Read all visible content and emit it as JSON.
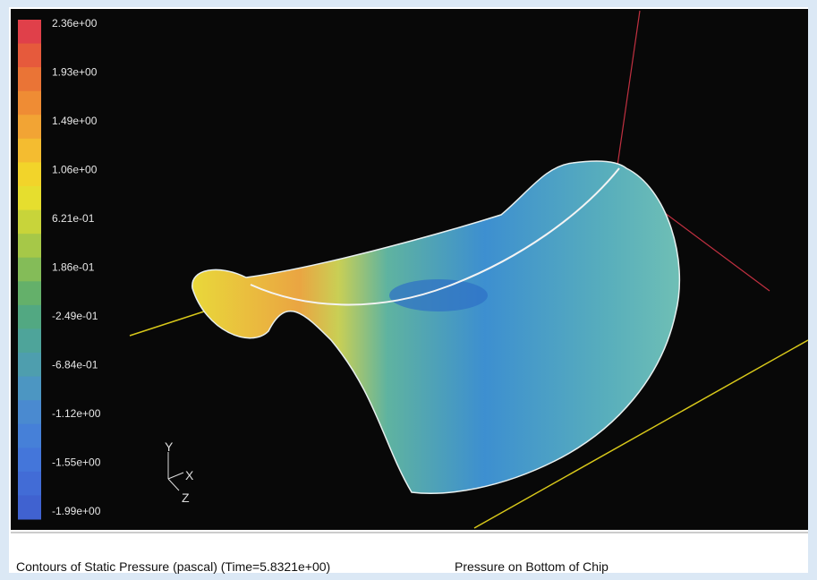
{
  "colorbar": {
    "labels": [
      "2.36e+00",
      "1.93e+00",
      "1.49e+00",
      "1.06e+00",
      "6.21e-01",
      "1.86e-01",
      "-2.49e-01",
      "-6.84e-01",
      "-1.12e+00",
      "-1.55e+00",
      "-1.99e+00"
    ]
  },
  "axes": {
    "y": "Y",
    "x": "X",
    "z": "Z"
  },
  "caption": {
    "title": "Contours of Static Pressure (pascal)  (Time=5.8321e+00)",
    "subtitle": "Pressure on Bottom of Chip"
  }
}
